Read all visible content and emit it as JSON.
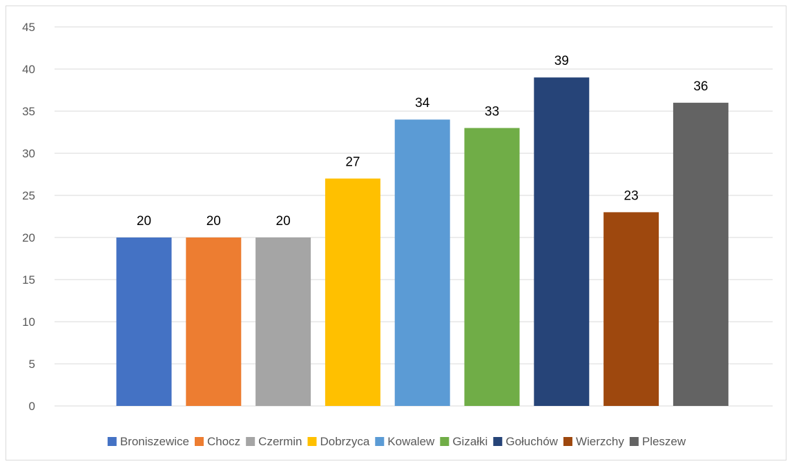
{
  "chart_data": {
    "type": "bar",
    "categories": [
      "Broniszewice",
      "Chocz",
      "Czermin",
      "Dobrzyca",
      "Kowalew",
      "Gizałki",
      "Gołuchów",
      "Wierzchy",
      "Pleszew"
    ],
    "values": [
      20,
      20,
      20,
      27,
      34,
      33,
      39,
      23,
      36
    ],
    "colors": [
      "#4472C4",
      "#ED7D31",
      "#A5A5A5",
      "#FFC000",
      "#5B9BD5",
      "#70AD47",
      "#264478",
      "#9E480E",
      "#636363"
    ],
    "ylim": [
      0,
      45
    ],
    "yticks": [
      0,
      5,
      10,
      15,
      20,
      25,
      30,
      35,
      40,
      45
    ],
    "grid": true,
    "legend_position": "bottom",
    "data_labels": true,
    "title": "",
    "xlabel": "",
    "ylabel": ""
  }
}
